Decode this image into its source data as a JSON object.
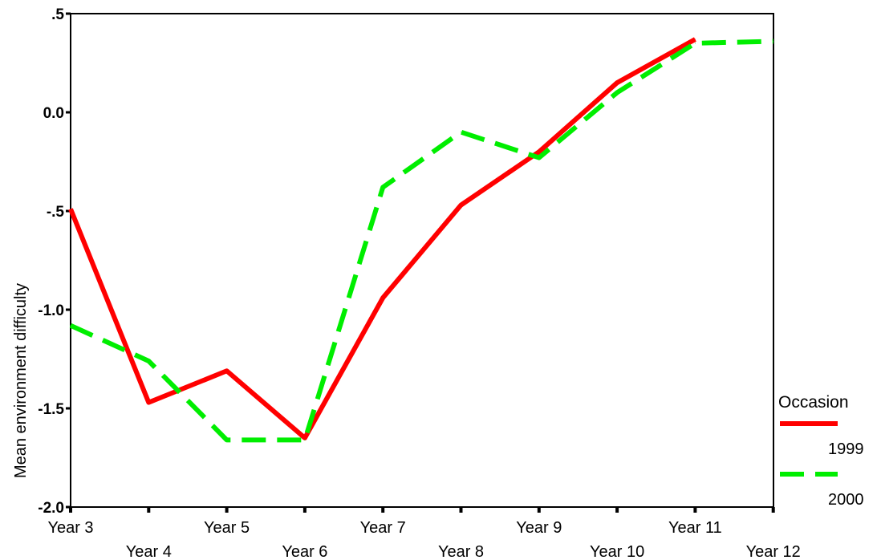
{
  "chart_data": {
    "type": "line",
    "title": "",
    "xlabel": "",
    "ylabel": "Mean environment difficulty",
    "categories": [
      "Year 3",
      "Year 4",
      "Year 5",
      "Year 6",
      "Year 7",
      "Year 8",
      "Year 9",
      "Year 10",
      "Year 11",
      "Year 12"
    ],
    "y_tick_labels": [
      ".5",
      "0.0",
      "-.5",
      "-1.0",
      "-1.5",
      "-2.0"
    ],
    "y_tick_values": [
      0.5,
      0.0,
      -0.5,
      -1.0,
      -1.5,
      -2.0
    ],
    "ylim": [
      -2.0,
      0.5
    ],
    "grid": false,
    "legend": {
      "title": "Occasion",
      "placement": "right"
    },
    "series": [
      {
        "name": "1999",
        "color": "#ff0000",
        "style": "solid",
        "values": [
          -0.49,
          -1.47,
          -1.31,
          -1.65,
          -0.94,
          -0.47,
          -0.2,
          0.15,
          0.37,
          null
        ]
      },
      {
        "name": "2000",
        "color": "#00ee00",
        "style": "dashed",
        "values": [
          -1.08,
          -1.26,
          -1.66,
          -1.66,
          -0.38,
          -0.1,
          -0.23,
          0.1,
          0.35,
          0.36
        ]
      }
    ]
  }
}
